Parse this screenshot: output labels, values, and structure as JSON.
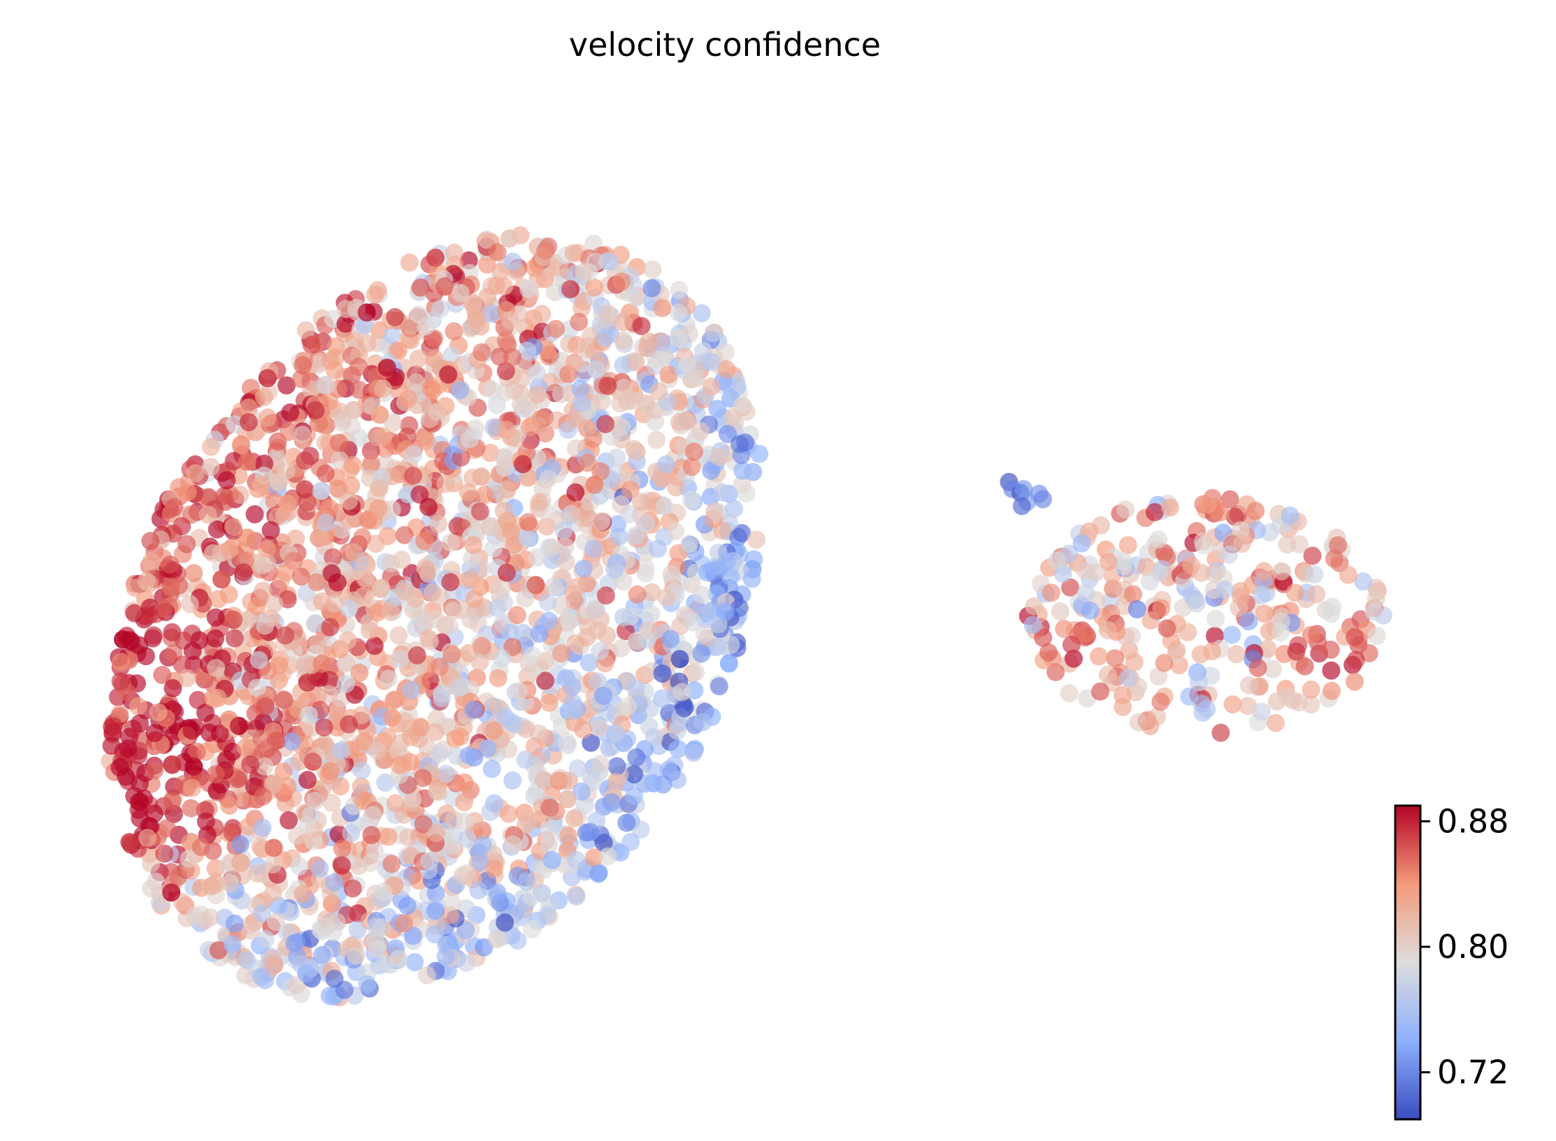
{
  "chart_data": {
    "type": "scatter",
    "title": "velocity confidence",
    "xlabel": "",
    "ylabel": "",
    "axes_visible": false,
    "grid": false,
    "marker_alpha": 0.65,
    "colormap": "coolwarm",
    "colormap_stops": [
      {
        "v": 0.0,
        "color": "#3b4cc0"
      },
      {
        "v": 0.25,
        "color": "#8db0fe"
      },
      {
        "v": 0.5,
        "color": "#dddcdc"
      },
      {
        "v": 0.75,
        "color": "#f49a7b"
      },
      {
        "v": 1.0,
        "color": "#b40426"
      }
    ],
    "colorbar": {
      "placement": "bottom-right",
      "vmin": 0.69,
      "vmax": 0.89,
      "ticks": [
        {
          "value": 0.72,
          "label": "0.72"
        },
        {
          "value": 0.8,
          "label": "0.80"
        },
        {
          "value": 0.88,
          "label": "0.88"
        }
      ]
    },
    "clusters": [
      {
        "name": "",
        "cx": 0.28,
        "cy": 0.54,
        "rx": 0.205,
        "ry": 0.35,
        "tilt_deg": 18,
        "n_points": 2900,
        "value_gradient": {
          "left": 0.86,
          "right": 0.77,
          "bottom_low": 0.76
        },
        "red_core": {
          "x": 0.11,
          "y": 0.66,
          "value": 0.88
        }
      },
      {
        "name": "",
        "cx": 0.775,
        "cy": 0.54,
        "rx": 0.115,
        "ry": 0.105,
        "tilt_deg": 0,
        "n_points": 320,
        "value_mean": 0.81,
        "red_spots": [
          {
            "x": 0.795,
            "y": 0.425,
            "value": 0.88
          },
          {
            "x": 0.855,
            "y": 0.575,
            "value": 0.88
          },
          {
            "x": 0.695,
            "y": 0.57,
            "value": 0.87
          }
        ],
        "blue_tail": {
          "x": 0.645,
          "y": 0.42,
          "value": 0.71
        }
      }
    ]
  }
}
